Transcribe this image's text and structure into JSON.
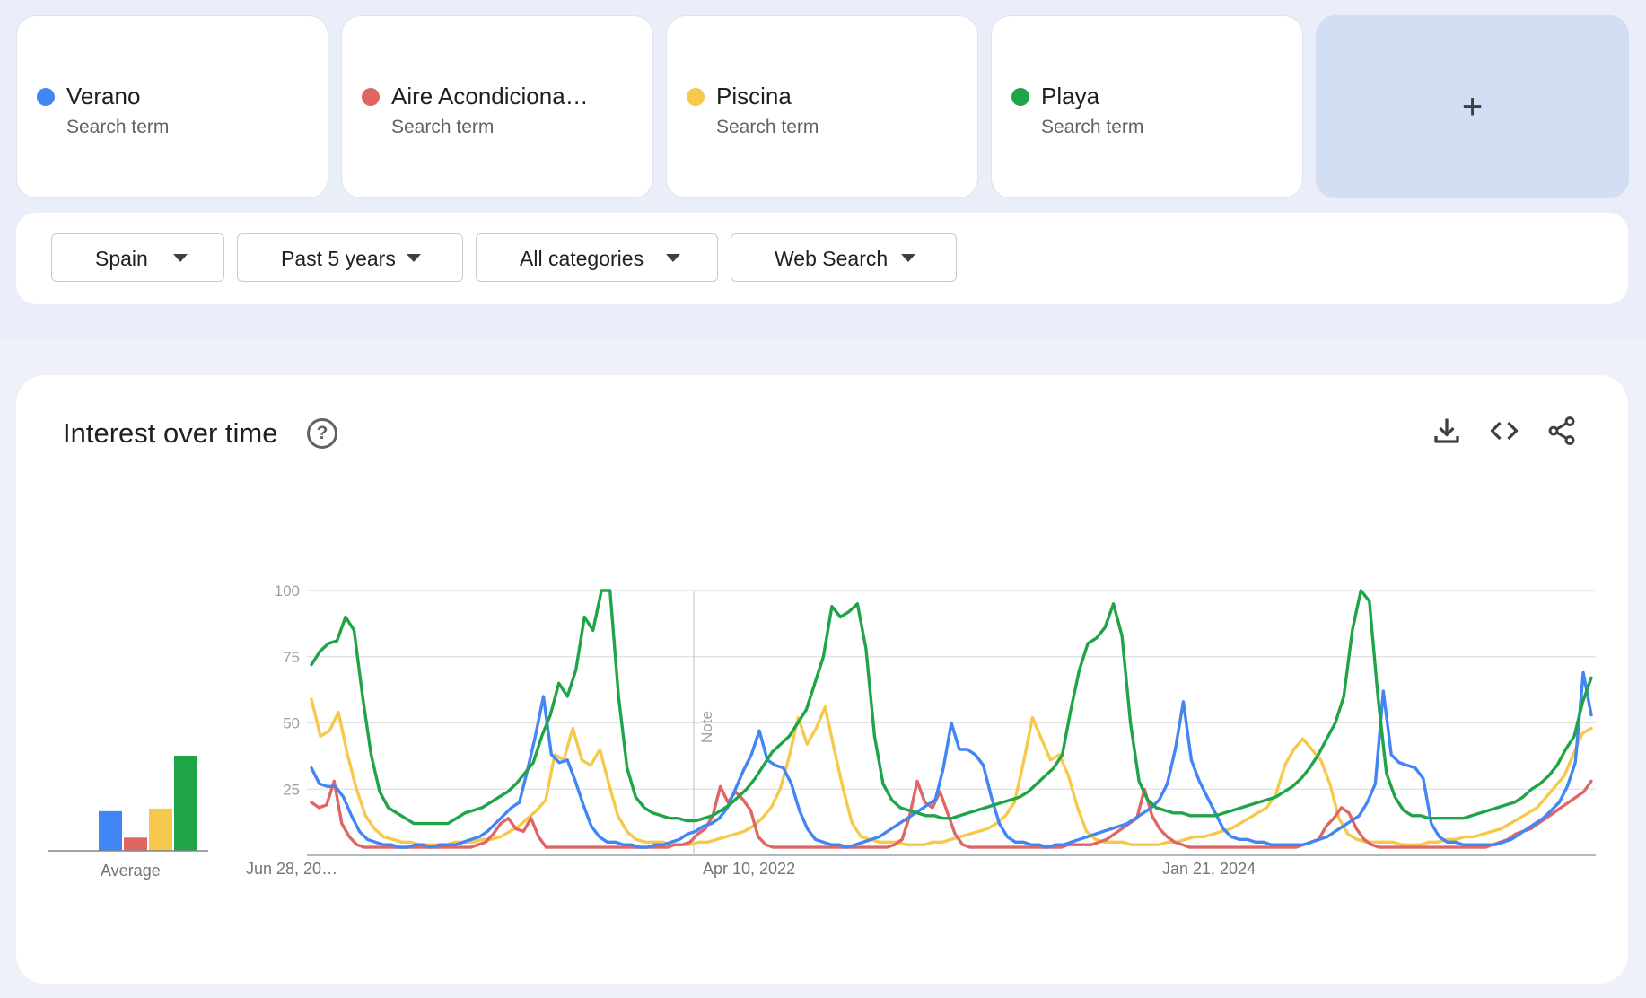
{
  "terms": [
    {
      "name": "Verano",
      "subtitle": "Search term",
      "color": "#4285f4"
    },
    {
      "name": "Aire Acondiciona…",
      "subtitle": "Search term",
      "color": "#e06666"
    },
    {
      "name": "Piscina",
      "subtitle": "Search term",
      "color": "#f6c94c"
    },
    {
      "name": "Playa",
      "subtitle": "Search term",
      "color": "#1fa548"
    }
  ],
  "add_term": {
    "label": "+"
  },
  "filters": {
    "region": "Spain",
    "time_range": "Past 5 years",
    "category": "All categories",
    "search_type": "Web Search"
  },
  "panel": {
    "title": "Interest over time",
    "help_icon": "help-circle-icon",
    "actions": [
      "download-icon",
      "embed-code-icon",
      "share-icon"
    ]
  },
  "chart_data": {
    "type": "line",
    "title": "",
    "ylim": [
      0,
      100
    ],
    "yticks": [
      25,
      50,
      75,
      100
    ],
    "xtick_labels": [
      "Jun 28, 20…",
      "Apr 10, 2022",
      "Jan 21, 2024"
    ],
    "note_label": "Note",
    "grid": true,
    "average": {
      "label": "Average",
      "values": [
        {
          "name": "Verano",
          "value": 15
        },
        {
          "name": "Aire Acondiciona…",
          "value": 5
        },
        {
          "name": "Piscina",
          "value": 16
        },
        {
          "name": "Playa",
          "value": 36
        }
      ]
    },
    "series": [
      {
        "name": "Verano",
        "color": "#4285f4",
        "values": [
          33,
          27,
          26,
          26,
          22,
          15,
          9,
          6,
          5,
          4,
          4,
          3,
          3,
          4,
          4,
          3,
          4,
          4,
          4,
          5,
          6,
          7,
          9,
          12,
          15,
          18,
          20,
          32,
          45,
          60,
          38,
          35,
          36,
          28,
          19,
          11,
          7,
          5,
          5,
          4,
          4,
          3,
          3,
          4,
          4,
          5,
          6,
          8,
          9,
          11,
          12,
          14,
          18,
          25,
          32,
          38,
          47,
          36,
          34,
          33,
          27,
          17,
          10,
          6,
          5,
          4,
          4,
          3,
          4,
          5,
          6,
          7,
          9,
          11,
          13,
          15,
          17,
          19,
          21,
          33,
          50,
          40,
          40,
          38,
          34,
          22,
          12,
          7,
          5,
          5,
          4,
          4,
          3,
          4,
          4,
          5,
          6,
          7,
          8,
          9,
          10,
          11,
          12,
          14,
          16,
          18,
          21,
          27,
          40,
          58,
          36,
          28,
          22,
          16,
          10,
          7,
          6,
          6,
          5,
          5,
          4,
          4,
          4,
          4,
          4,
          5,
          6,
          7,
          9,
          11,
          13,
          15,
          20,
          27,
          62,
          38,
          35,
          34,
          33,
          29,
          12,
          7,
          5,
          5,
          4,
          4,
          4,
          4,
          4,
          5,
          6,
          8,
          10,
          12,
          14,
          17,
          20,
          26,
          35,
          69,
          53
        ]
      },
      {
        "name": "Aire Acondiciona…",
        "color": "#e06666",
        "values": [
          20,
          18,
          19,
          28,
          12,
          7,
          4,
          3,
          3,
          3,
          3,
          3,
          3,
          3,
          3,
          3,
          3,
          3,
          3,
          3,
          3,
          3,
          4,
          5,
          8,
          12,
          14,
          10,
          9,
          14,
          7,
          3,
          3,
          3,
          3,
          3,
          3,
          3,
          3,
          3,
          3,
          3,
          3,
          3,
          3,
          3,
          3,
          3,
          4,
          4,
          5,
          8,
          10,
          15,
          26,
          20,
          24,
          21,
          17,
          7,
          4,
          3,
          3,
          3,
          3,
          3,
          3,
          3,
          3,
          3,
          3,
          3,
          3,
          3,
          3,
          3,
          3,
          4,
          6,
          15,
          28,
          20,
          18,
          24,
          16,
          8,
          4,
          3,
          3,
          3,
          3,
          3,
          3,
          3,
          3,
          3,
          3,
          3,
          3,
          3,
          4,
          4,
          4,
          4,
          5,
          6,
          8,
          10,
          12,
          14,
          25,
          15,
          10,
          7,
          5,
          4,
          3,
          3,
          3,
          3,
          3,
          3,
          3,
          3,
          3,
          3,
          3,
          3,
          3,
          3,
          3,
          4,
          5,
          6,
          11,
          14,
          18,
          16,
          10,
          6,
          4,
          3,
          3,
          3,
          3,
          3,
          3,
          3,
          3,
          3,
          3,
          3,
          3,
          3,
          3,
          3,
          4,
          5,
          6,
          8,
          9,
          10,
          12,
          14,
          16,
          18,
          20,
          22,
          24,
          28
        ]
      },
      {
        "name": "Piscina",
        "color": "#f6c94c",
        "values": [
          59,
          45,
          47,
          54,
          38,
          25,
          15,
          10,
          7,
          6,
          5,
          5,
          4,
          4,
          4,
          4,
          5,
          5,
          5,
          6,
          6,
          7,
          9,
          11,
          14,
          17,
          21,
          38,
          36,
          48,
          36,
          34,
          40,
          27,
          15,
          9,
          6,
          5,
          5,
          5,
          4,
          4,
          4,
          5,
          5,
          6,
          7,
          8,
          9,
          11,
          14,
          18,
          25,
          37,
          52,
          42,
          48,
          56,
          40,
          25,
          12,
          7,
          6,
          5,
          5,
          5,
          4,
          4,
          4,
          5,
          5,
          6,
          7,
          8,
          9,
          10,
          12,
          15,
          20,
          35,
          52,
          44,
          36,
          38,
          30,
          18,
          9,
          6,
          5,
          5,
          5,
          4,
          4,
          4,
          4,
          5,
          5,
          6,
          7,
          7,
          8,
          9,
          10,
          12,
          14,
          16,
          18,
          23,
          34,
          40,
          44,
          40,
          36,
          27,
          14,
          8,
          6,
          5,
          5,
          5,
          5,
          4,
          4,
          4,
          5,
          5,
          6,
          6,
          7,
          7,
          8,
          9,
          10,
          12,
          14,
          16,
          18,
          22,
          26,
          30,
          38,
          46,
          48
        ]
      },
      {
        "name": "Playa",
        "color": "#1fa548",
        "values": [
          72,
          77,
          80,
          81,
          90,
          85,
          60,
          38,
          24,
          18,
          16,
          14,
          12,
          12,
          12,
          12,
          12,
          14,
          16,
          17,
          18,
          20,
          22,
          24,
          27,
          31,
          35,
          45,
          53,
          65,
          60,
          70,
          90,
          85,
          100,
          100,
          60,
          33,
          22,
          18,
          16,
          15,
          14,
          14,
          13,
          13,
          14,
          15,
          17,
          19,
          22,
          25,
          29,
          34,
          39,
          42,
          45,
          50,
          55,
          65,
          75,
          94,
          90,
          92,
          95,
          78,
          45,
          27,
          21,
          18,
          17,
          16,
          15,
          15,
          14,
          14,
          15,
          16,
          17,
          18,
          19,
          20,
          21,
          22,
          24,
          27,
          30,
          33,
          38,
          55,
          70,
          80,
          82,
          86,
          95,
          83,
          50,
          28,
          21,
          18,
          17,
          16,
          16,
          15,
          15,
          15,
          15,
          16,
          17,
          18,
          19,
          20,
          21,
          22,
          24,
          26,
          29,
          33,
          38,
          44,
          50,
          60,
          85,
          100,
          96,
          60,
          31,
          22,
          17,
          15,
          15,
          14,
          14,
          14,
          14,
          14,
          15,
          16,
          17,
          18,
          19,
          20,
          22,
          25,
          27,
          30,
          34,
          40,
          45,
          58,
          67
        ]
      }
    ]
  }
}
